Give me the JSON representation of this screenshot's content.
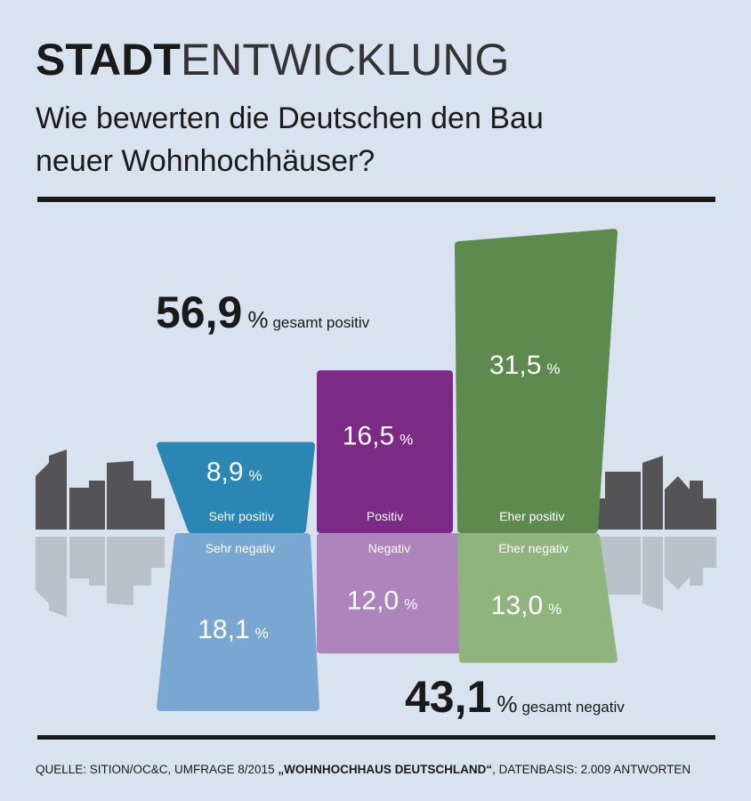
{
  "chart_data": {
    "type": "diverging-bar",
    "title": {
      "bold": "STADT",
      "light": "ENTWICKLUNG"
    },
    "subtitle": [
      "Wie bewerten die Deutschen den Bau",
      "neuer Wohnhochhäuser?"
    ],
    "unit": "%",
    "series": [
      {
        "categories": [
          "Sehr positiv",
          "Positiv",
          "Eher positiv"
        ],
        "values": [
          8.9,
          16.5,
          31.5
        ],
        "value_labels": [
          "8,9",
          "16,5",
          "31,5"
        ],
        "colors": [
          "#2b86b3",
          "#7b2a86",
          "#5e8a4f"
        ]
      },
      {
        "categories": [
          "Sehr negativ",
          "Negativ",
          "Eher negativ"
        ],
        "values": [
          18.1,
          12.0,
          13.0
        ],
        "value_labels": [
          "18,1",
          "12,0",
          "13,0"
        ],
        "colors": [
          "#7aa7d1",
          "#ae84bd",
          "#90b47d"
        ]
      }
    ],
    "totals": [
      {
        "value": 56.9,
        "label": "56,9",
        "text": "gesamt positiv"
      },
      {
        "value": 43.1,
        "label": "43,1",
        "text": "gesamt negativ"
      }
    ],
    "source": [
      "QUELLE: SITION/OC&C, UMFRAGE 8/2015 ",
      "„WOHNHOCHHAUS DEUTSCHLAND“",
      ", DATENBASIS: 2.009 ANTWORTEN"
    ]
  }
}
